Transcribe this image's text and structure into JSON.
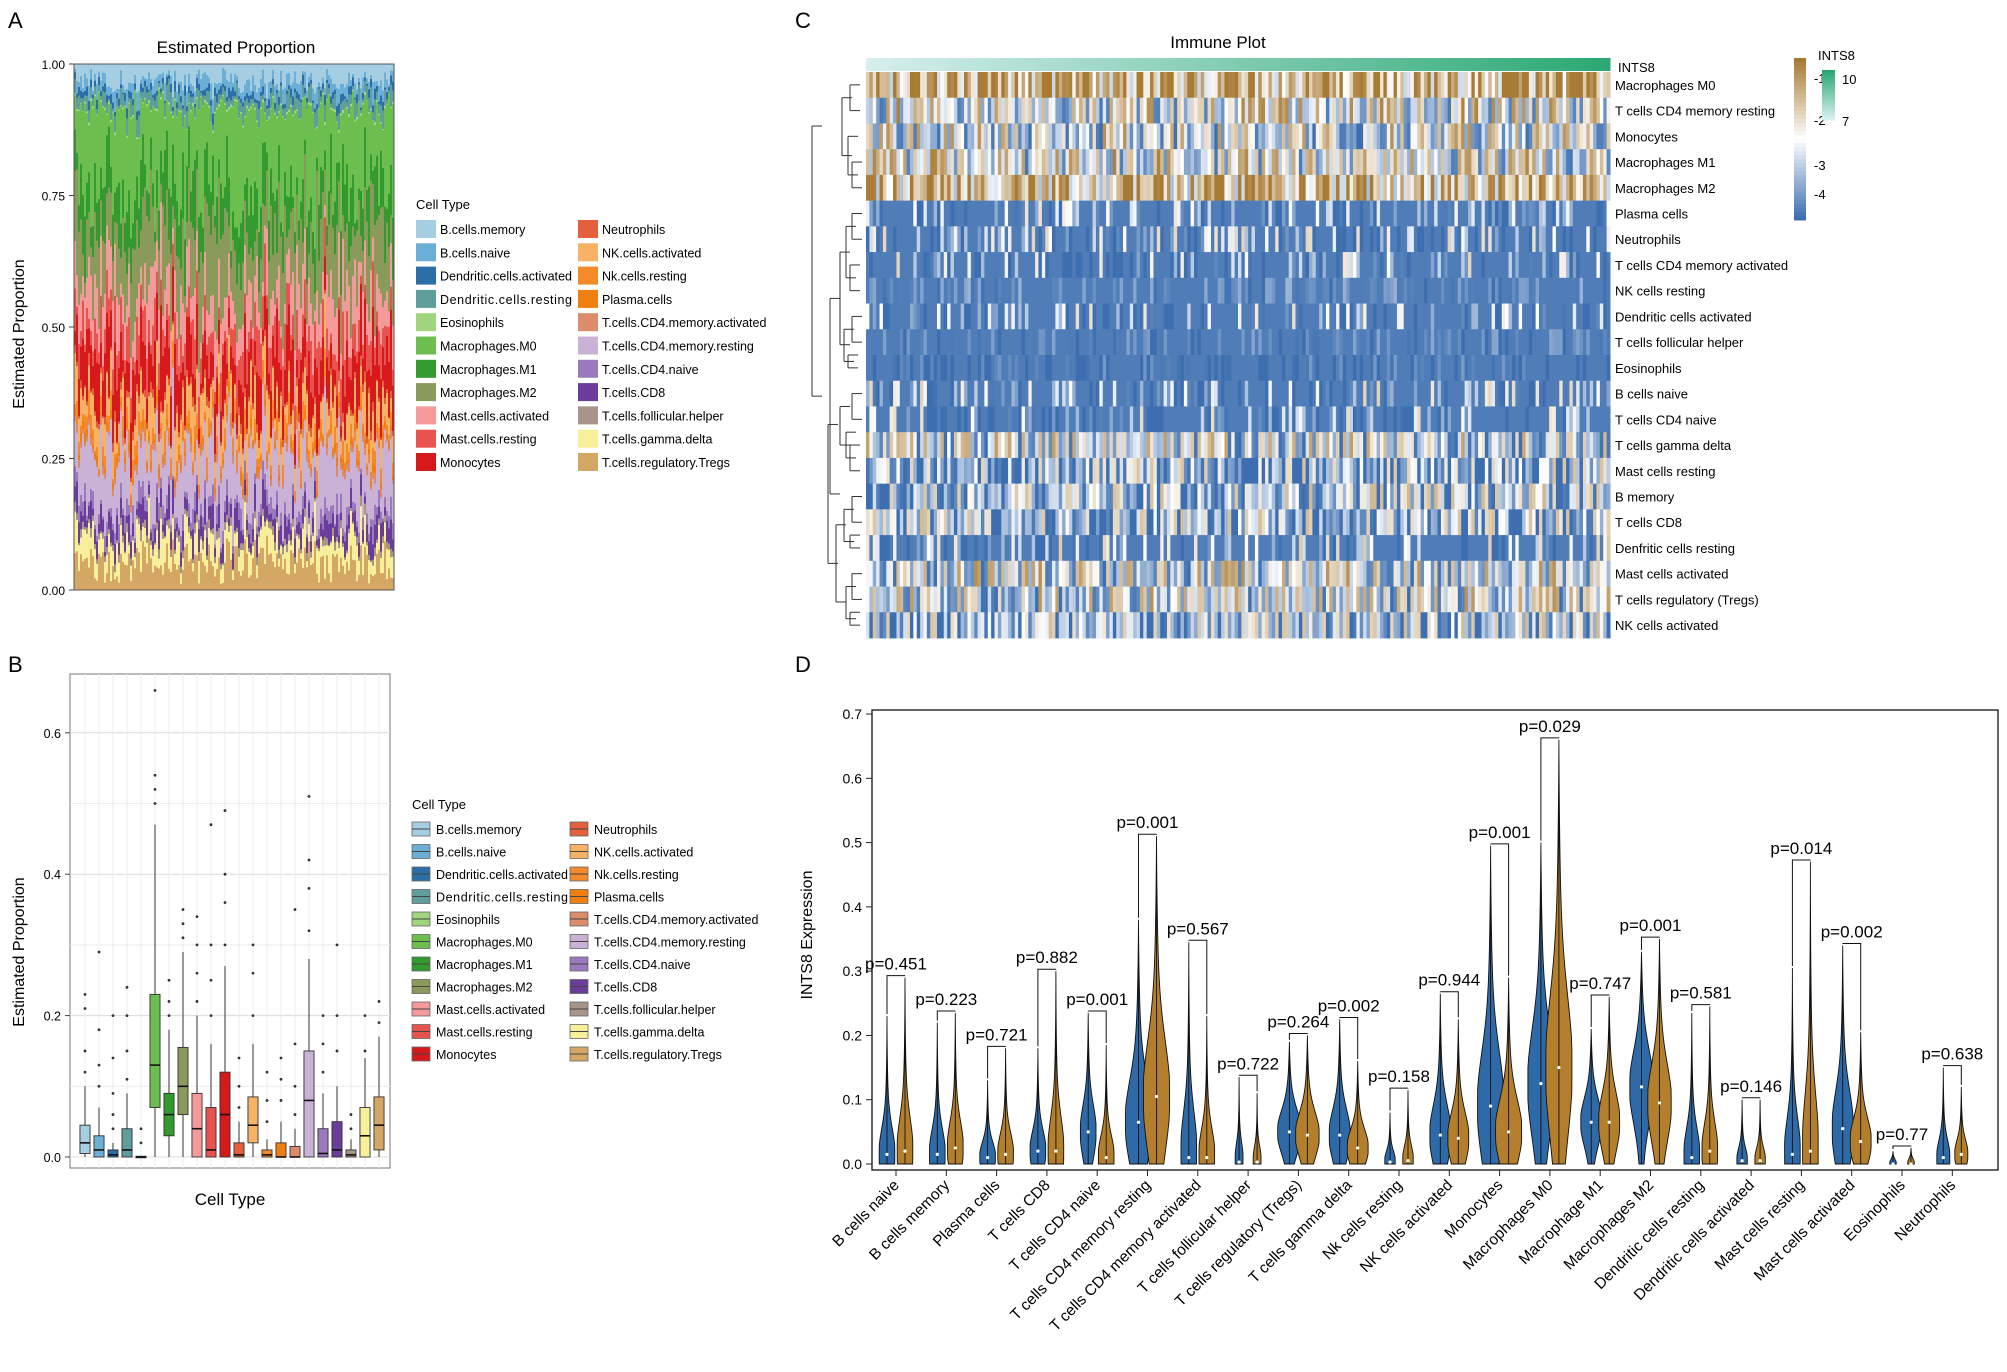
{
  "panel_labels": [
    "A",
    "B",
    "C",
    "D"
  ],
  "legend_title": "Cell Type",
  "cell_types": [
    {
      "name": "B.cells.memory",
      "color": "#a6cee3"
    },
    {
      "name": "B.cells.naive",
      "color": "#6baed6"
    },
    {
      "name": "Dendritic.cells.activated",
      "color": "#2b6fa6"
    },
    {
      "name": "Dendritic.cells.resting",
      "color": "#5f9e9a"
    },
    {
      "name": "Eosinophils",
      "color": "#a1d57d"
    },
    {
      "name": "Macrophages.M0",
      "color": "#6cbf4f"
    },
    {
      "name": "Macrophages.M1",
      "color": "#339a2f"
    },
    {
      "name": "Macrophages.M2",
      "color": "#8a9a5b"
    },
    {
      "name": "Mast.cells.activated",
      "color": "#f49a9a"
    },
    {
      "name": "Mast.cells.resting",
      "color": "#e8524f"
    },
    {
      "name": "Monocytes",
      "color": "#d7191c"
    },
    {
      "name": "Neutrophils",
      "color": "#e4603c"
    },
    {
      "name": "NK.cells.activated",
      "color": "#f8b265"
    },
    {
      "name": "Nk.cells.resting",
      "color": "#f58a2a"
    },
    {
      "name": "Plasma.cells",
      "color": "#f07f12"
    },
    {
      "name": "T.cells.CD4.memory.activated",
      "color": "#dc8c6a"
    },
    {
      "name": "T.cells.CD4.memory.resting",
      "color": "#c9b2d6"
    },
    {
      "name": "T.cells.CD4.naive",
      "color": "#9a79be"
    },
    {
      "name": "T.cells.CD8",
      "color": "#6a3d9a"
    },
    {
      "name": "T.cells.follicular.helper",
      "color": "#a8958a"
    },
    {
      "name": "T.cells.gamma.delta",
      "color": "#f7ef99"
    },
    {
      "name": "T.cells.regulatory.Tregs",
      "color": "#d4a864"
    }
  ],
  "legend_b_names": [
    "B.cells.memory",
    "B.cells.naive",
    "Dendritic.cells.activated",
    "Dendritic.cells.resting",
    "Eosinophils",
    "Macrophages.M0",
    "Macrophages.M1",
    "Macrophages.M2",
    "Mast.cells.activated",
    "Mast.cells.resting",
    "Monocytes",
    "Neutrophils",
    "NK.cells.activated",
    "Nk.cells.resting",
    "Plasma.cells",
    "T.cells.CD4.memory.activated",
    "T.cells.CD4.memory.resting",
    "T.cells.CD4.naive",
    "T.cells.CD8",
    "T.cells.follicular.helper",
    "T.cells.gamma.delta",
    "T.cells.regulatory.Tregs"
  ],
  "chart_data": [
    {
      "panel": "A",
      "type": "area",
      "title": "Estimated Proportion",
      "xlabel": "",
      "ylabel": "Estimated Proportion",
      "ylim": [
        0,
        1
      ],
      "yticks": [
        "0.00",
        "0.25",
        "0.50",
        "0.75",
        "1.00"
      ],
      "description_series": "stacked proportions per sample, 22 cell types",
      "mean_proportions": [
        0.03,
        0.02,
        0.01,
        0.02,
        0.003,
        0.14,
        0.07,
        0.11,
        0.07,
        0.05,
        0.08,
        0.01,
        0.05,
        0.02,
        0.01,
        0.01,
        0.09,
        0.02,
        0.03,
        0.01,
        0.04,
        0.05
      ]
    },
    {
      "panel": "B",
      "type": "box",
      "xlabel": "Cell Type",
      "ylabel": "Estimated Proportion",
      "ylim": [
        0,
        0.67
      ],
      "yticks": [
        "0.0",
        "0.2",
        "0.4",
        "0.6"
      ],
      "boxes": [
        {
          "q1": 0.005,
          "med": 0.02,
          "q3": 0.045,
          "whi": 0.1,
          "out": [
            0.12,
            0.15,
            0.21,
            0.23
          ]
        },
        {
          "q1": 0.0,
          "med": 0.01,
          "q3": 0.03,
          "whi": 0.07,
          "out": [
            0.1,
            0.13,
            0.18,
            0.29
          ]
        },
        {
          "q1": 0.0,
          "med": 0.003,
          "q3": 0.01,
          "whi": 0.02,
          "out": [
            0.04,
            0.06,
            0.09,
            0.14,
            0.2
          ]
        },
        {
          "q1": 0.0,
          "med": 0.01,
          "q3": 0.04,
          "whi": 0.09,
          "out": [
            0.11,
            0.15,
            0.2,
            0.24
          ]
        },
        {
          "q1": 0.0,
          "med": 0.0,
          "q3": 0.001,
          "whi": 0.002,
          "out": [
            0.02,
            0.04
          ]
        },
        {
          "q1": 0.07,
          "med": 0.13,
          "q3": 0.23,
          "whi": 0.47,
          "out": [
            0.5,
            0.52,
            0.54,
            0.66
          ]
        },
        {
          "q1": 0.03,
          "med": 0.06,
          "q3": 0.09,
          "whi": 0.18,
          "out": [
            0.2,
            0.22,
            0.25
          ]
        },
        {
          "q1": 0.06,
          "med": 0.1,
          "q3": 0.155,
          "whi": 0.29,
          "out": [
            0.31,
            0.33,
            0.35
          ]
        },
        {
          "q1": 0.0,
          "med": 0.04,
          "q3": 0.09,
          "whi": 0.2,
          "out": [
            0.22,
            0.26,
            0.3,
            0.34
          ]
        },
        {
          "q1": 0.0,
          "med": 0.01,
          "q3": 0.07,
          "whi": 0.16,
          "out": [
            0.2,
            0.25,
            0.3,
            0.47
          ]
        },
        {
          "q1": 0.0,
          "med": 0.06,
          "q3": 0.12,
          "whi": 0.27,
          "out": [
            0.3,
            0.36,
            0.4,
            0.49
          ]
        },
        {
          "q1": 0.0,
          "med": 0.003,
          "q3": 0.02,
          "whi": 0.05,
          "out": [
            0.07,
            0.1,
            0.14
          ]
        },
        {
          "q1": 0.02,
          "med": 0.045,
          "q3": 0.085,
          "whi": 0.16,
          "out": [
            0.2,
            0.26,
            0.3
          ]
        },
        {
          "q1": 0.0,
          "med": 0.003,
          "q3": 0.01,
          "whi": 0.025,
          "out": [
            0.05,
            0.08,
            0.12
          ]
        },
        {
          "q1": 0.0,
          "med": 0.0,
          "q3": 0.02,
          "whi": 0.05,
          "out": [
            0.08,
            0.11,
            0.14
          ]
        },
        {
          "q1": 0.0,
          "med": 0.0,
          "q3": 0.015,
          "whi": 0.04,
          "out": [
            0.06,
            0.1,
            0.16,
            0.35
          ]
        },
        {
          "q1": 0.0,
          "med": 0.08,
          "q3": 0.15,
          "whi": 0.28,
          "out": [
            0.32,
            0.38,
            0.42,
            0.51
          ]
        },
        {
          "q1": 0.0,
          "med": 0.005,
          "q3": 0.04,
          "whi": 0.09,
          "out": [
            0.12,
            0.16,
            0.2
          ]
        },
        {
          "q1": 0.0,
          "med": 0.01,
          "q3": 0.05,
          "whi": 0.1,
          "out": [
            0.15,
            0.2,
            0.3
          ]
        },
        {
          "q1": 0.0,
          "med": 0.003,
          "q3": 0.01,
          "whi": 0.025,
          "out": [
            0.04,
            0.06
          ]
        },
        {
          "q1": 0.0,
          "med": 0.03,
          "q3": 0.07,
          "whi": 0.14,
          "out": [
            0.15,
            0.2
          ]
        },
        {
          "q1": 0.01,
          "med": 0.045,
          "q3": 0.085,
          "whi": 0.17,
          "out": [
            0.19,
            0.22
          ]
        }
      ]
    },
    {
      "panel": "C",
      "type": "heatmap",
      "title": "Immune Plot",
      "annotation_label": "INTS8",
      "legend_title": "INTS8",
      "rows": [
        "Macrophages M0",
        "T cells CD4 memory resting",
        "Monocytes",
        "Macrophages M1",
        "Macrophages M2",
        "Plasma cells",
        "Neutrophils",
        "T cells CD4 memory activated",
        "NK cells resting",
        "Dendritic cells activated",
        "T cells follicular helper",
        "Eosinophils",
        "B cells naive",
        "T cells CD4 naive",
        "T cells gamma delta",
        "Mast cells resting",
        "B memory",
        "T cells CD8",
        "Denfritic cells resting",
        "Mast cells activated",
        "T cells regulatory (Tregs)",
        "NK cells activated"
      ],
      "row_levels": [
        0.2,
        0.5,
        0.55,
        0.5,
        0.25,
        0.82,
        0.78,
        0.8,
        0.88,
        0.84,
        0.93,
        0.97,
        0.8,
        0.82,
        0.6,
        0.74,
        0.7,
        0.72,
        0.76,
        0.55,
        0.55,
        0.7
      ],
      "color_scale_labels": [
        "-1",
        "-2",
        "-3",
        "-4"
      ],
      "color_scale_low": "#3d6fb0",
      "color_scale_mid": "#ffffff",
      "color_scale_high": "#a87b34",
      "ints8_scale_labels": [
        "10",
        "7"
      ],
      "ints8_low": "#d6efef",
      "ints8_high": "#2ba872"
    },
    {
      "panel": "D",
      "type": "violin",
      "ylabel": "INTS8 Expression",
      "ylim": [
        0,
        0.7
      ],
      "yticks": [
        "0.0",
        "0.1",
        "0.2",
        "0.3",
        "0.4",
        "0.5",
        "0.6",
        "0.7"
      ],
      "low_color": "#2f6aa8",
      "high_color": "#b47f2c",
      "groups": [
        {
          "label": "B cells naive",
          "p": "p=0.451",
          "maxL": 0.23,
          "maxR": 0.29,
          "medL": 0.015,
          "medR": 0.02,
          "w": 0.6
        },
        {
          "label": "B cells memory",
          "p": "p=0.223",
          "maxL": 0.22,
          "maxR": 0.235,
          "medL": 0.015,
          "medR": 0.025,
          "w": 0.6
        },
        {
          "label": "Plasma cells",
          "p": "p=0.721",
          "maxL": 0.13,
          "maxR": 0.18,
          "medL": 0.01,
          "medR": 0.015,
          "w": 0.6
        },
        {
          "label": "T cells CD8",
          "p": "p=0.882",
          "maxL": 0.18,
          "maxR": 0.3,
          "medL": 0.02,
          "medR": 0.02,
          "w": 0.6
        },
        {
          "label": "T cells CD4 naive",
          "p": "p=0.001",
          "maxL": 0.235,
          "maxR": 0.185,
          "medL": 0.05,
          "medR": 0.01,
          "w": 0.6
        },
        {
          "label": "T cells CD4 memory resting",
          "p": "p=0.001",
          "maxL": 0.38,
          "maxR": 0.51,
          "medL": 0.065,
          "medR": 0.105,
          "w": 1.0
        },
        {
          "label": "T cells CD4 memory activated",
          "p": "p=0.567",
          "maxL": 0.345,
          "maxR": 0.23,
          "medL": 0.01,
          "medR": 0.01,
          "w": 0.6
        },
        {
          "label": "T cells follicular helper",
          "p": "p=0.722",
          "maxL": 0.135,
          "maxR": 0.11,
          "medL": 0.003,
          "medR": 0.003,
          "w": 0.3
        },
        {
          "label": "T cells regulatory (Tregs)",
          "p": "p=0.264",
          "maxL": 0.19,
          "maxR": 0.2,
          "medL": 0.05,
          "medR": 0.045,
          "w": 0.9
        },
        {
          "label": "T cells gamma delta",
          "p": "p=0.002",
          "maxL": 0.225,
          "maxR": 0.16,
          "medL": 0.045,
          "medR": 0.025,
          "w": 0.8
        },
        {
          "label": "Nk cells resting",
          "p": "p=0.158",
          "maxL": 0.08,
          "maxR": 0.115,
          "medL": 0.003,
          "medR": 0.005,
          "w": 0.4
        },
        {
          "label": "NK cells activated",
          "p": "p=0.944",
          "maxL": 0.265,
          "maxR": 0.225,
          "medL": 0.045,
          "medR": 0.04,
          "w": 0.8
        },
        {
          "label": "Monocytes",
          "p": "p=0.001",
          "maxL": 0.495,
          "maxR": 0.29,
          "medL": 0.09,
          "medR": 0.05,
          "w": 1.0
        },
        {
          "label": "Macrophages M0",
          "p": "p=0.029",
          "maxL": 0.5,
          "maxR": 0.66,
          "medL": 0.125,
          "medR": 0.15,
          "w": 1.0
        },
        {
          "label": "Macrophage M1",
          "p": "p=0.747",
          "maxL": 0.21,
          "maxR": 0.26,
          "medL": 0.065,
          "medR": 0.065,
          "w": 0.8
        },
        {
          "label": "Macrophages M2",
          "p": "p=0.001",
          "maxL": 0.33,
          "maxR": 0.35,
          "medL": 0.12,
          "medR": 0.095,
          "w": 0.9
        },
        {
          "label": "Dendritic cells resting",
          "p": "p=0.581",
          "maxL": 0.235,
          "maxR": 0.245,
          "medL": 0.01,
          "medR": 0.02,
          "w": 0.6
        },
        {
          "label": "Dendritic cells activated",
          "p": "p=0.146",
          "maxL": 0.1,
          "maxR": 0.1,
          "medL": 0.005,
          "medR": 0.005,
          "w": 0.4
        },
        {
          "label": "Mast cells resting",
          "p": "p=0.014",
          "maxL": 0.305,
          "maxR": 0.47,
          "medL": 0.015,
          "medR": 0.02,
          "w": 0.6
        },
        {
          "label": "Mast cells activated",
          "p": "p=0.002",
          "maxL": 0.34,
          "maxR": 0.205,
          "medL": 0.055,
          "medR": 0.035,
          "w": 0.8
        },
        {
          "label": "Eosinophils",
          "p": "p=0.77",
          "maxL": 0.02,
          "maxR": 0.025,
          "medL": 0.0,
          "medR": 0.0,
          "w": 0.25
        },
        {
          "label": "Neutrophils",
          "p": "p=0.638",
          "maxL": 0.15,
          "maxR": 0.12,
          "medL": 0.01,
          "medR": 0.015,
          "w": 0.5
        }
      ]
    }
  ]
}
